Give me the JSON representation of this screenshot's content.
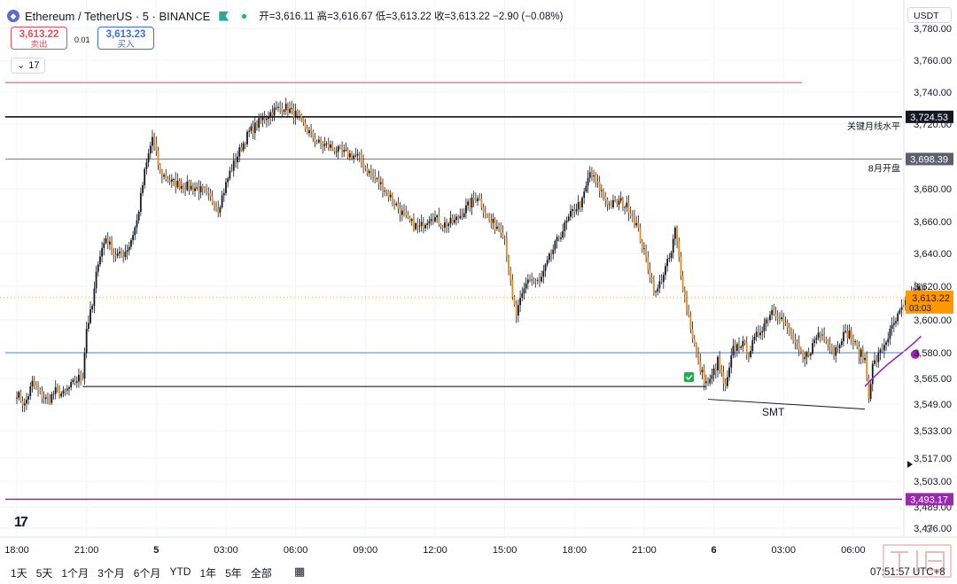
{
  "header": {
    "symbol": "Ethereum / TetherUS · 5 · BINANCE",
    "coin_icon": "ethereum-icon",
    "ohlc": "开=3,616.11 高=3,616.67 低=3,613.22 收=3,613.22 −2.90 (−0.08%)"
  },
  "trade": {
    "sell_price": "3,613.22",
    "sell_label": "卖出",
    "spread": "0.01",
    "buy_price": "3,613.23",
    "buy_label": "买入"
  },
  "indicators": {
    "count": "17",
    "icon": "chevron-down-icon"
  },
  "currency": "USDT",
  "timeframes": [
    "1天",
    "5天",
    "1个月",
    "3个月",
    "6个月",
    "YTD",
    "1年",
    "5年",
    "全部"
  ],
  "clock": "07:51:57 UTC+8",
  "colors": {
    "up": "#131722",
    "down": "#e68a1e",
    "red_line": "#f08080",
    "purple": "#9c27b0",
    "blue_line": "#8aa8e8",
    "orange_tag": "#ff9800"
  },
  "chart_data": {
    "type": "candlestick",
    "x_ticks": [
      {
        "label": "18:00",
        "i": 0
      },
      {
        "label": "21:00",
        "i": 36
      },
      {
        "label": "5",
        "i": 72
      },
      {
        "label": "03:00",
        "i": 108
      },
      {
        "label": "06:00",
        "i": 144
      },
      {
        "label": "09:00",
        "i": 180
      },
      {
        "label": "12:00",
        "i": 216
      },
      {
        "label": "15:00",
        "i": 252
      },
      {
        "label": "18:00",
        "i": 288
      },
      {
        "label": "21:00",
        "i": 324
      },
      {
        "label": "6",
        "i": 360
      },
      {
        "label": "03:00",
        "i": 396
      },
      {
        "label": "06:00",
        "i": 432
      }
    ],
    "y_ticks": [
      "3,780.00",
      "3,760.00",
      "3,740.00",
      "3,720.00",
      "3,680.00",
      "3,660.00",
      "3,640.00",
      "3,620.00",
      "3,600.00",
      "3,580.00",
      "3,565.00",
      "3,549.00",
      "3,533.00",
      "3,517.00",
      "3,503.00",
      "3,489.00",
      "3,476.00"
    ],
    "y_tick_values": [
      3780,
      3760,
      3740,
      3720,
      3680,
      3660,
      3640,
      3620,
      3600,
      3580,
      3565,
      3549,
      3533,
      3517,
      3503,
      3489,
      3476
    ],
    "last_price": "3,613.22",
    "countdown": "03:03",
    "levels": [
      {
        "price": 3746,
        "label": "",
        "tag": "",
        "kind": "red"
      },
      {
        "price": 3724.53,
        "label": "关键月线水平",
        "tag": "3,724.53",
        "kind": "black"
      },
      {
        "price": 3698.39,
        "label": "8月开盘",
        "tag": "3,698.39",
        "kind": "gray"
      },
      {
        "price": 3580,
        "label": "",
        "tag": "",
        "kind": "blue"
      },
      {
        "price": 3493.17,
        "label": "",
        "tag": "3,493.17",
        "kind": "purple"
      }
    ],
    "annotations": [
      {
        "text": "SMT"
      }
    ],
    "anchors": [
      [
        0,
        3556
      ],
      [
        4,
        3548
      ],
      [
        8,
        3562
      ],
      [
        12,
        3555
      ],
      [
        16,
        3551
      ],
      [
        20,
        3557
      ],
      [
        24,
        3555
      ],
      [
        30,
        3563
      ],
      [
        34,
        3567
      ],
      [
        36,
        3595
      ],
      [
        39,
        3608
      ],
      [
        42,
        3636
      ],
      [
        46,
        3650
      ],
      [
        50,
        3640
      ],
      [
        54,
        3638
      ],
      [
        58,
        3645
      ],
      [
        62,
        3660
      ],
      [
        66,
        3690
      ],
      [
        70,
        3712
      ],
      [
        74,
        3690
      ],
      [
        80,
        3684
      ],
      [
        86,
        3682
      ],
      [
        94,
        3680
      ],
      [
        100,
        3674
      ],
      [
        104,
        3668
      ],
      [
        110,
        3690
      ],
      [
        116,
        3706
      ],
      [
        120,
        3715
      ],
      [
        126,
        3722
      ],
      [
        132,
        3728
      ],
      [
        138,
        3731
      ],
      [
        144,
        3726
      ],
      [
        150,
        3716
      ],
      [
        156,
        3708
      ],
      [
        162,
        3706
      ],
      [
        168,
        3702
      ],
      [
        176,
        3700
      ],
      [
        182,
        3690
      ],
      [
        190,
        3680
      ],
      [
        196,
        3670
      ],
      [
        202,
        3660
      ],
      [
        208,
        3656
      ],
      [
        214,
        3664
      ],
      [
        220,
        3658
      ],
      [
        226,
        3660
      ],
      [
        232,
        3668
      ],
      [
        238,
        3676
      ],
      [
        244,
        3660
      ],
      [
        250,
        3656
      ],
      [
        252,
        3650
      ],
      [
        256,
        3612
      ],
      [
        258,
        3603
      ],
      [
        264,
        3625
      ],
      [
        270,
        3622
      ],
      [
        276,
        3640
      ],
      [
        282,
        3655
      ],
      [
        288,
        3668
      ],
      [
        292,
        3672
      ],
      [
        296,
        3690
      ],
      [
        300,
        3682
      ],
      [
        306,
        3670
      ],
      [
        312,
        3672
      ],
      [
        316,
        3668
      ],
      [
        320,
        3658
      ],
      [
        326,
        3632
      ],
      [
        330,
        3615
      ],
      [
        334,
        3628
      ],
      [
        338,
        3640
      ],
      [
        340,
        3655
      ],
      [
        344,
        3620
      ],
      [
        348,
        3596
      ],
      [
        352,
        3573
      ],
      [
        356,
        3562
      ],
      [
        358,
        3563
      ],
      [
        362,
        3575
      ],
      [
        366,
        3558
      ],
      [
        370,
        3582
      ],
      [
        374,
        3586
      ],
      [
        378,
        3580
      ],
      [
        382,
        3590
      ],
      [
        386,
        3598
      ],
      [
        390,
        3606
      ],
      [
        394,
        3603
      ],
      [
        398,
        3594
      ],
      [
        402,
        3586
      ],
      [
        406,
        3575
      ],
      [
        410,
        3582
      ],
      [
        414,
        3592
      ],
      [
        418,
        3590
      ],
      [
        422,
        3580
      ],
      [
        426,
        3590
      ],
      [
        430,
        3592
      ],
      [
        434,
        3582
      ],
      [
        438,
        3576
      ],
      [
        440,
        3555
      ],
      [
        442,
        3572
      ],
      [
        446,
        3580
      ],
      [
        450,
        3590
      ],
      [
        456,
        3604
      ],
      [
        462,
        3614
      ],
      [
        466,
        3618
      ],
      [
        470,
        3613
      ]
    ]
  }
}
